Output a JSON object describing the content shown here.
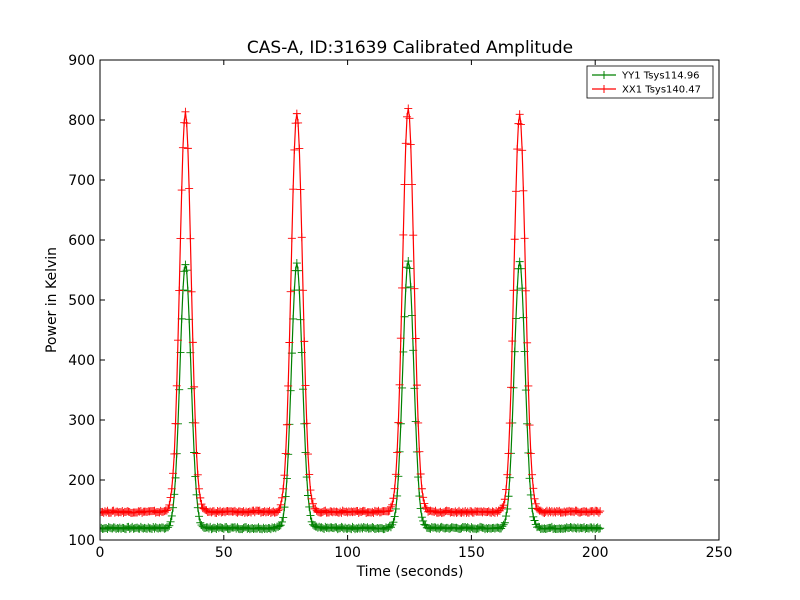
{
  "chart_data": {
    "type": "line",
    "title": "CAS-A, ID:31639 Calibrated Amplitude",
    "xlabel": "Time (seconds)",
    "ylabel": "Power in Kelvin",
    "xlim": [
      0,
      250
    ],
    "ylim": [
      100,
      900
    ],
    "xticks": [
      0,
      50,
      100,
      150,
      200,
      250
    ],
    "yticks": [
      100,
      200,
      300,
      400,
      500,
      600,
      700,
      800,
      900
    ],
    "grid": false,
    "legend_position": "top-right",
    "series": [
      {
        "name": "YY1 Tsys114.96",
        "color": "#008000",
        "marker": "+",
        "x_start": 0,
        "x_step": 0.5,
        "baseline": 120,
        "peaks": [
          {
            "center": 34.5,
            "height": 560
          },
          {
            "center": 79.5,
            "height": 560
          },
          {
            "center": 124.5,
            "height": 565
          },
          {
            "center": 169.5,
            "height": 562
          }
        ],
        "peak_sigma": 2.2,
        "x_end": 202
      },
      {
        "name": "XX1 Tsys140.47",
        "color": "#ff0000",
        "marker": "+",
        "x_start": 0,
        "x_step": 0.5,
        "baseline": 147,
        "peaks": [
          {
            "center": 34.5,
            "height": 812
          },
          {
            "center": 79.5,
            "height": 812
          },
          {
            "center": 124.5,
            "height": 820
          },
          {
            "center": 169.5,
            "height": 810
          }
        ],
        "peak_sigma": 2.3,
        "x_end": 202
      }
    ]
  }
}
